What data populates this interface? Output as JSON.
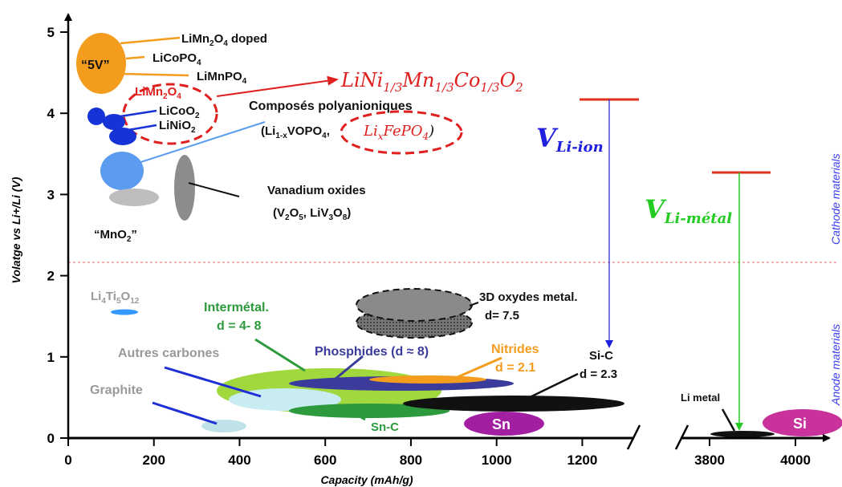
{
  "chart_data": {
    "type": "scatter",
    "title": "",
    "xlabel": "Capacity (mAh/g)",
    "ylabel": "Volatge vs Li+/Li (V)",
    "xlim": [
      0,
      1300
    ],
    "xlim_break": [
      3700,
      4100
    ],
    "ylim": [
      0,
      5.2
    ],
    "x_ticks": [
      "0",
      "200",
      "400",
      "600",
      "800",
      "1000",
      "1200",
      "3800",
      "4000"
    ],
    "y_ticks": [
      "0",
      "1",
      "2",
      "3",
      "4",
      "5"
    ],
    "divider_voltage": 2.15,
    "side_labels": {
      "upper": "Cathode materials",
      "lower": "Anode materials"
    },
    "cathode_labels": {
      "limn2o4_doped": "LiMn₂O₄ doped",
      "five_v": "“5V”",
      "licopo4": "LiCoPO₄",
      "limnpo4": "LiMnPO₄",
      "limn2o4": "LiMn₂O₄",
      "licoo2": "LiCoO₂",
      "linio2": "LiNiO₂",
      "nmc": "LiNi1/3Mn1/3Co1/3O2",
      "polyanion": "Composés polyanioniques",
      "vopo4": "(Li1-xVOPO4,",
      "lifepo4": "LixFePO4)",
      "vanadium": "Vanadium oxides",
      "vanadium_formula": "(V₂O₅, LiV₃O₈)",
      "mno2": "“MnO₂”"
    },
    "anode_labels": {
      "lto": "Li₄Ti₅O₁₂",
      "intermetal": "Intermétal.",
      "intermetal_d": "d = 4- 8",
      "oxydes3d": "3D oxydes metal.",
      "oxydes3d_d": "d= 7.5",
      "autres": "Autres carbones",
      "phosphides": "Phosphides (d ≈ 8)",
      "nitrides": "Nitrides",
      "nitrides_d": "d = 2.1",
      "sic": "Si-C",
      "sic_d": "d = 2.3",
      "graphite": "Graphite",
      "snc": "Sn-C",
      "sn": "Sn",
      "si": "Si",
      "limetal": "Li metal"
    },
    "voltage_arrows": [
      {
        "name": "V",
        "sub": "Li-ion",
        "top_v": 4.2,
        "x": 1200,
        "color": "#1f1fe0"
      },
      {
        "name": "V",
        "sub": "Li-métal",
        "top_v": 3.25,
        "x": 3860,
        "color": "#22cc22"
      }
    ],
    "regions": [
      {
        "id": "5v",
        "x": 80,
        "y": 4.7,
        "color": "#f39c1e"
      },
      {
        "id": "licoo2",
        "x": 130,
        "y": 3.9,
        "color": "#1533d6"
      },
      {
        "id": "lifepo4",
        "x": 120,
        "y": 3.3,
        "color": "#5b9cf0"
      },
      {
        "id": "mno2",
        "x": 150,
        "y": 3.0,
        "color": "#bdbdbd"
      },
      {
        "id": "vanadium",
        "x": 255,
        "y": 3.1,
        "color": "#8c8c8c"
      },
      {
        "id": "lto",
        "x": 150,
        "y": 1.55,
        "color": "#3399ff"
      },
      {
        "id": "graphite",
        "x": 340,
        "y": 0.15,
        "color": "#b9dfe6"
      },
      {
        "id": "autres",
        "x": 440,
        "y": 0.45,
        "color": "#c9ecf2"
      },
      {
        "id": "intermetal",
        "x": 560,
        "y": 0.55,
        "color": "#9bd53a"
      },
      {
        "id": "phosphides",
        "x": 690,
        "y": 0.7,
        "color": "#3b3b9c"
      },
      {
        "id": "nitrides",
        "x": 720,
        "y": 0.7,
        "color": "#f39c1e"
      },
      {
        "id": "snc",
        "x": 640,
        "y": 0.35,
        "color": "#2e9a3e"
      },
      {
        "id": "sic",
        "x": 950,
        "y": 0.42,
        "color": "#111111"
      },
      {
        "id": "sn",
        "x": 950,
        "y": 0.18,
        "color": "#a21fa1"
      },
      {
        "id": "oxydes3d",
        "x": 780,
        "y": 1.55,
        "color": "#888888"
      },
      {
        "id": "limetal",
        "x": 3860,
        "y": 0.05,
        "color": "#111111"
      },
      {
        "id": "si",
        "x": 4010,
        "y": 0.2,
        "color": "#c8329a"
      }
    ]
  }
}
